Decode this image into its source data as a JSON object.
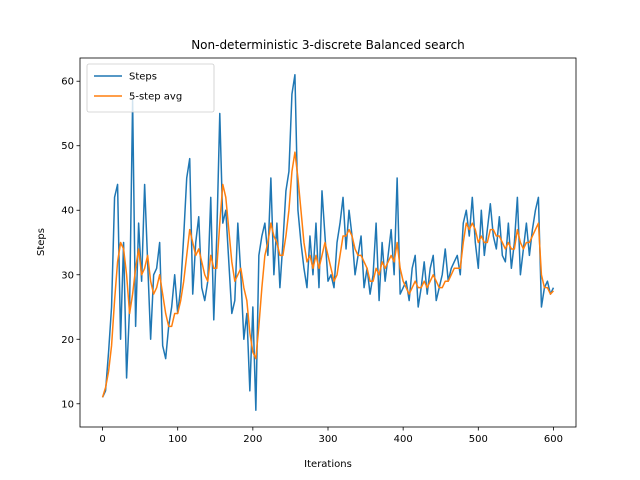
{
  "chart_data": {
    "type": "line",
    "title": "Non-deterministic 3-discrete Balanced search",
    "xlabel": "Iterations",
    "ylabel": "Steps",
    "xlim": [
      -30,
      630
    ],
    "ylim": [
      6.4,
      63.6
    ],
    "xticks": [
      0,
      100,
      200,
      300,
      400,
      500,
      600
    ],
    "yticks": [
      10,
      20,
      30,
      40,
      50,
      60
    ],
    "legend_position": "top-left",
    "grid": false,
    "series": [
      {
        "name": "Steps",
        "color": "#1f77b4",
        "x": [
          0,
          4,
          8,
          12,
          16,
          20,
          24,
          28,
          32,
          36,
          40,
          44,
          48,
          52,
          56,
          60,
          64,
          68,
          72,
          76,
          80,
          84,
          88,
          92,
          96,
          100,
          104,
          108,
          112,
          116,
          120,
          124,
          128,
          132,
          136,
          140,
          144,
          148,
          152,
          156,
          160,
          164,
          168,
          172,
          176,
          180,
          184,
          188,
          192,
          196,
          200,
          204,
          208,
          212,
          216,
          220,
          224,
          228,
          232,
          236,
          240,
          244,
          248,
          252,
          256,
          260,
          264,
          268,
          272,
          276,
          280,
          284,
          288,
          292,
          296,
          300,
          304,
          308,
          312,
          316,
          320,
          324,
          328,
          332,
          336,
          340,
          344,
          348,
          352,
          356,
          360,
          364,
          368,
          372,
          376,
          380,
          384,
          388,
          392,
          396,
          400,
          404,
          408,
          412,
          416,
          420,
          424,
          428,
          432,
          436,
          440,
          444,
          448,
          452,
          456,
          460,
          464,
          468,
          472,
          476,
          480,
          484,
          488,
          492,
          496,
          500,
          504,
          508,
          512,
          516,
          520,
          524,
          528,
          532,
          536,
          540,
          544,
          548,
          552,
          556,
          560,
          564,
          568,
          572,
          576,
          580,
          584,
          588,
          592,
          596,
          600
        ],
        "y": [
          11,
          12,
          18,
          25,
          42,
          44,
          20,
          35,
          14,
          25,
          57,
          22,
          38,
          29,
          44,
          32,
          20,
          30,
          31,
          35,
          19,
          17,
          22,
          25,
          30,
          24,
          28,
          36,
          45,
          48,
          27,
          35,
          39,
          28,
          26,
          29,
          42,
          23,
          36,
          55,
          38,
          40,
          32,
          24,
          26,
          38,
          30,
          20,
          24,
          12,
          25,
          9,
          33,
          36,
          38,
          33,
          45,
          30,
          38,
          28,
          35,
          43,
          46,
          58,
          61,
          40,
          35,
          31,
          28,
          36,
          30,
          38,
          28,
          43,
          36,
          29,
          30,
          28,
          35,
          38,
          42,
          34,
          40,
          36,
          30,
          33,
          36,
          28,
          31,
          27,
          30,
          38,
          26,
          35,
          29,
          33,
          37,
          30,
          45,
          27,
          28,
          29,
          26,
          31,
          33,
          25,
          28,
          32,
          27,
          31,
          33,
          26,
          28,
          30,
          34,
          29,
          31,
          32,
          33,
          30,
          38,
          40,
          36,
          42,
          35,
          31,
          40,
          33,
          37,
          41,
          36,
          34,
          39,
          33,
          32,
          38,
          31,
          35,
          42,
          30,
          34,
          38,
          33,
          37,
          40,
          42,
          25,
          28,
          29,
          27,
          28
        ]
      },
      {
        "name": "5-step avg",
        "color": "#ff7f0e",
        "x": [
          0,
          4,
          8,
          12,
          16,
          20,
          24,
          28,
          32,
          36,
          40,
          44,
          48,
          52,
          56,
          60,
          64,
          68,
          72,
          76,
          80,
          84,
          88,
          92,
          96,
          100,
          104,
          108,
          112,
          116,
          120,
          124,
          128,
          132,
          136,
          140,
          144,
          148,
          152,
          156,
          160,
          164,
          168,
          172,
          176,
          180,
          184,
          188,
          192,
          196,
          200,
          204,
          208,
          212,
          216,
          220,
          224,
          228,
          232,
          236,
          240,
          244,
          248,
          252,
          256,
          260,
          264,
          268,
          272,
          276,
          280,
          284,
          288,
          292,
          296,
          300,
          304,
          308,
          312,
          316,
          320,
          324,
          328,
          332,
          336,
          340,
          344,
          348,
          352,
          356,
          360,
          364,
          368,
          372,
          376,
          380,
          384,
          388,
          392,
          396,
          400,
          404,
          408,
          412,
          416,
          420,
          424,
          428,
          432,
          436,
          440,
          444,
          448,
          452,
          456,
          460,
          464,
          468,
          472,
          476,
          480,
          484,
          488,
          492,
          496,
          500,
          504,
          508,
          512,
          516,
          520,
          524,
          528,
          532,
          536,
          540,
          544,
          548,
          552,
          556,
          560,
          564,
          568,
          572,
          576,
          580,
          584,
          588,
          592,
          596,
          600
        ],
        "y": [
          11,
          12.5,
          15,
          19,
          26,
          32,
          35,
          34,
          30,
          24,
          27,
          31,
          34,
          30,
          31,
          33,
          29,
          27,
          28,
          30,
          27,
          24,
          22,
          22,
          24,
          24,
          26,
          29,
          33,
          37,
          35,
          33,
          34,
          32,
          30,
          29,
          33,
          31,
          31,
          38,
          44,
          42,
          37,
          32,
          29,
          30,
          31,
          28,
          26,
          21,
          18,
          17,
          22,
          28,
          33,
          35,
          38,
          36,
          35,
          33,
          33,
          36,
          40,
          46,
          49,
          45,
          40,
          35,
          32,
          33,
          31,
          33,
          31,
          33,
          35,
          33,
          31,
          29,
          30,
          33,
          36,
          36,
          37,
          36,
          34,
          33,
          33,
          32,
          31,
          29,
          29,
          31,
          30,
          32,
          31,
          32,
          33,
          32,
          35,
          31,
          29,
          28,
          27,
          28,
          29,
          28,
          28,
          29,
          28,
          29,
          30,
          29,
          28,
          28,
          29,
          29,
          30,
          31,
          31,
          31,
          35,
          38,
          37,
          38,
          37,
          35,
          36,
          35,
          35,
          37,
          37,
          36,
          36,
          35,
          34,
          35,
          34,
          34,
          37,
          35,
          34,
          35,
          35,
          36,
          37,
          38,
          30,
          28,
          28,
          27,
          27.5
        ]
      }
    ]
  }
}
